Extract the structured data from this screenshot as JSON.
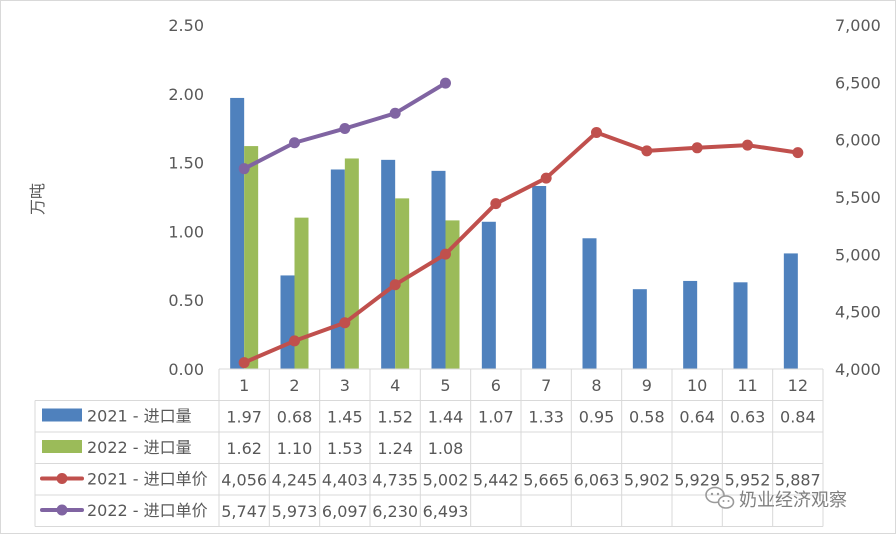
{
  "chart_data": {
    "type": "bar+line",
    "categories": [
      "1",
      "2",
      "3",
      "4",
      "5",
      "6",
      "7",
      "8",
      "9",
      "10",
      "11",
      "12"
    ],
    "ylabel": "万吨",
    "ylim": [
      0,
      2.5
    ],
    "yticks": [
      "0.00",
      "0.50",
      "1.00",
      "1.50",
      "2.00",
      "2.50"
    ],
    "y2lim": [
      4000,
      7000
    ],
    "y2ticks": [
      "4,000",
      "4,500",
      "5,000",
      "5,500",
      "6,000",
      "6,500",
      "7,000"
    ],
    "grid": "none",
    "legend": "data-table-left",
    "series": [
      {
        "name": "2021 - 进口量",
        "kind": "bar",
        "axis": "left",
        "color": "#4f81bd",
        "values": [
          1.97,
          0.68,
          1.45,
          1.52,
          1.44,
          1.07,
          1.33,
          0.95,
          0.58,
          0.64,
          0.63,
          0.84
        ],
        "labels": [
          "1.97",
          "0.68",
          "1.45",
          "1.52",
          "1.44",
          "1.07",
          "1.33",
          "0.95",
          "0.58",
          "0.64",
          "0.63",
          "0.84"
        ]
      },
      {
        "name": "2022 - 进口量",
        "kind": "bar",
        "axis": "left",
        "color": "#9bbb59",
        "values": [
          1.62,
          1.1,
          1.53,
          1.24,
          1.08,
          null,
          null,
          null,
          null,
          null,
          null,
          null
        ],
        "labels": [
          "1.62",
          "1.10",
          "1.53",
          "1.24",
          "1.08",
          "",
          "",
          "",
          "",
          "",
          "",
          ""
        ]
      },
      {
        "name": "2021 - 进口单价",
        "kind": "line",
        "axis": "right",
        "color": "#c0504d",
        "values": [
          4056,
          4245,
          4403,
          4735,
          5002,
          5442,
          5665,
          6063,
          5902,
          5929,
          5952,
          5887
        ],
        "labels": [
          "4,056",
          "4,245",
          "4,403",
          "4,735",
          "5,002",
          "5,442",
          "5,665",
          "6,063",
          "5,902",
          "5,929",
          "5,952",
          "5,887"
        ]
      },
      {
        "name": "2022 - 进口单价",
        "kind": "line",
        "axis": "right",
        "color": "#8064a2",
        "values": [
          5747,
          5973,
          6097,
          6230,
          6493,
          null,
          null,
          null,
          null,
          null,
          null,
          null
        ],
        "labels": [
          "5,747",
          "5,973",
          "6,097",
          "6,230",
          "6,493",
          "",
          "",
          "",
          "",
          "",
          "",
          ""
        ]
      }
    ]
  },
  "watermark": {
    "text": "奶业经济观察",
    "icon": "wechat-icon"
  }
}
